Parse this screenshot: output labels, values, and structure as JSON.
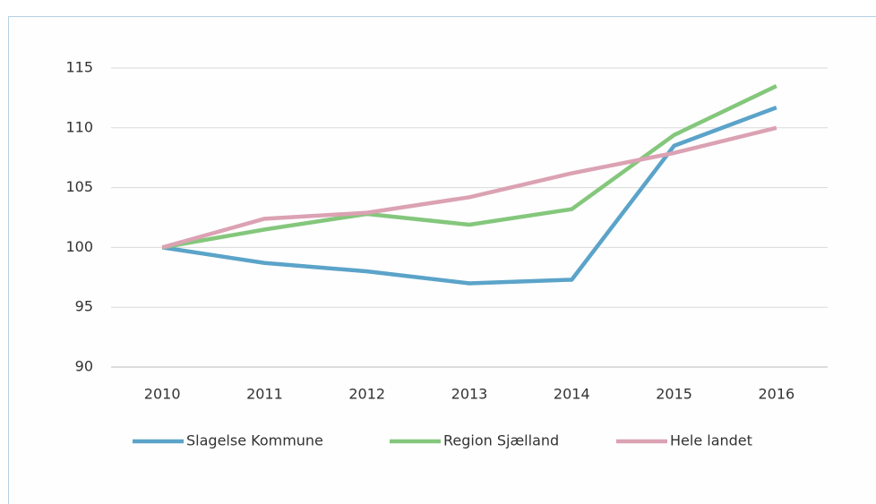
{
  "chart_data": {
    "type": "line",
    "categories": [
      "2010",
      "2011",
      "2012",
      "2013",
      "2014",
      "2015",
      "2016"
    ],
    "series": [
      {
        "name": "Slagelse Kommune",
        "color": "#5ba3c9",
        "values": [
          100,
          98.7,
          98.0,
          97.0,
          97.3,
          108.5,
          111.7
        ]
      },
      {
        "name": "Region Sjælland",
        "color": "#84c77c",
        "values": [
          100,
          101.5,
          102.8,
          101.9,
          103.2,
          109.4,
          113.5
        ]
      },
      {
        "name": "Hele landet",
        "color": "#dba2b3",
        "values": [
          100,
          102.4,
          102.9,
          104.2,
          106.2,
          107.9,
          110.0
        ]
      }
    ],
    "ylim": [
      90,
      115
    ],
    "yticks": [
      90,
      95,
      100,
      105,
      110,
      115
    ],
    "grid": true,
    "legend": "bottom"
  }
}
